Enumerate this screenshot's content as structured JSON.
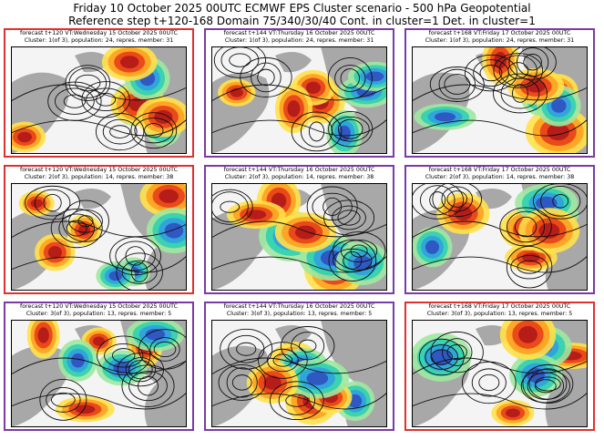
{
  "header": {
    "title": "Friday 10 October 2025 00UTC ECMWF EPS Cluster scenario - 500 hPa Geopotential",
    "subtitle": "Reference step t+120-168 Domain 75/340/30/40 Cont. in cluster=1 Det. in cluster=1"
  },
  "panels": [
    {
      "line1": "forecast t+120 VT:Wednesday 15 October 2025 00UTC",
      "line2": "Cluster: 1(of 3), population: 24, repres. member: 31",
      "border_color": "#e03030"
    },
    {
      "line1": "forecast t+144 VT:Thursday 16 October 2025 00UTC",
      "line2": "Cluster: 1(of 3), population: 24, repres. member: 31",
      "border_color": "#7a3aa8"
    },
    {
      "line1": "forecast t+168 VT:Friday 17 October 2025 00UTC",
      "line2": "Cluster: 1(of 3), population: 24, repres. member: 31",
      "border_color": "#7a3aa8"
    },
    {
      "line1": "forecast t+120 VT:Wednesday 15 October 2025 00UTC",
      "line2": "Cluster: 2(of 3), population: 14, repres. member: 38",
      "border_color": "#e03030"
    },
    {
      "line1": "forecast t+144 VT:Thursday 16 October 2025 00UTC",
      "line2": "Cluster: 2(of 3), population: 14, repres. member: 38",
      "border_color": "#7a3aa8"
    },
    {
      "line1": "forecast t+168 VT:Friday 17 October 2025 00UTC",
      "line2": "Cluster: 2(of 3), population: 14, repres. member: 38",
      "border_color": "#7a3aa8"
    },
    {
      "line1": "forecast t+120 VT:Wednesday 15 October 2025 00UTC",
      "line2": "Cluster: 3(of 3), population: 13, repres. member: 5",
      "border_color": "#7a3aa8"
    },
    {
      "line1": "forecast t+144 VT:Thursday 16 October 2025 00UTC",
      "line2": "Cluster: 3(of 3), population: 13, repres. member: 5",
      "border_color": "#7a3aa8"
    },
    {
      "line1": "forecast t+168 VT:Friday 17 October 2025 00UTC",
      "line2": "Cluster: 3(of 3), population: 13, repres. member: 5",
      "border_color": "#e03030"
    }
  ]
}
